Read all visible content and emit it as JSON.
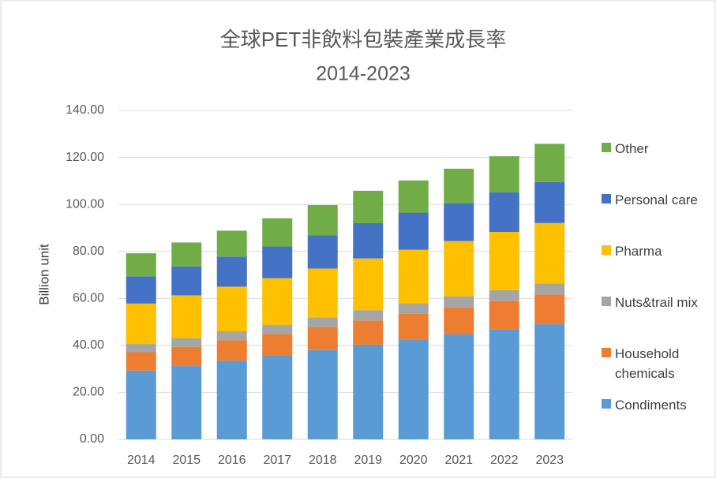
{
  "chart_data": {
    "type": "bar",
    "stacked": true,
    "title": "全球PET非飲料包裝產業成長率",
    "subtitle": "2014-2023",
    "y_label": "Billion unit",
    "categories": [
      "2014",
      "2015",
      "2016",
      "2017",
      "2018",
      "2019",
      "2020",
      "2021",
      "2022",
      "2023"
    ],
    "series": [
      {
        "name": "Condiments",
        "color": "#5b9bd5",
        "values": [
          29.3,
          31.2,
          33.5,
          35.6,
          38.0,
          40.3,
          42.5,
          44.8,
          46.7,
          49.0
        ]
      },
      {
        "name": "Household chemicals",
        "color": "#ed7d31",
        "values": [
          7.8,
          8.2,
          8.7,
          9.2,
          9.8,
          10.3,
          11.0,
          11.5,
          12.3,
          12.7
        ]
      },
      {
        "name": "Nuts&trail mix",
        "color": "#a5a5a5",
        "values": [
          3.5,
          3.7,
          3.8,
          4.0,
          4.1,
          4.4,
          4.5,
          4.6,
          4.5,
          4.7
        ]
      },
      {
        "name": "Pharma",
        "color": "#ffc000",
        "values": [
          17.2,
          18.2,
          19.0,
          19.8,
          20.8,
          22.0,
          22.7,
          23.5,
          24.8,
          25.7
        ]
      },
      {
        "name": "Personal care",
        "color": "#4472c4",
        "values": [
          11.6,
          12.3,
          12.8,
          13.5,
          14.2,
          15.0,
          15.8,
          16.2,
          16.9,
          17.4
        ]
      },
      {
        "name": "Other",
        "color": "#70ad47",
        "values": [
          9.8,
          10.2,
          11.0,
          12.0,
          12.8,
          13.8,
          13.7,
          14.6,
          15.3,
          16.3
        ]
      }
    ],
    "ylim": [
      0,
      140
    ],
    "yticks": [
      {
        "value": 0,
        "label": "0.00"
      },
      {
        "value": 20,
        "label": "20.00"
      },
      {
        "value": 40,
        "label": "40.00"
      },
      {
        "value": 60,
        "label": "60.00"
      },
      {
        "value": 80,
        "label": "80.00"
      },
      {
        "value": 100,
        "label": "100.00"
      },
      {
        "value": 120,
        "label": "120.00"
      },
      {
        "value": 140,
        "label": "140.00"
      }
    ],
    "grid": true,
    "legend": "right"
  }
}
